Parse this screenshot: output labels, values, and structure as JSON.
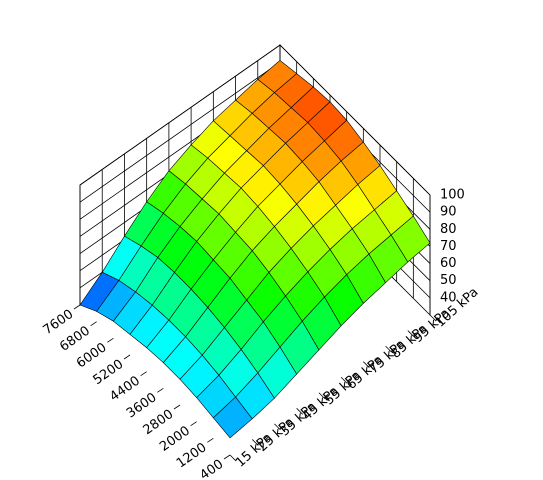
{
  "chart_data": {
    "type": "surface",
    "x": [
      15,
      25,
      35,
      45,
      55,
      65,
      75,
      85,
      95,
      105
    ],
    "y": [
      400,
      1200,
      2000,
      2800,
      3600,
      4400,
      5200,
      6000,
      6800,
      7600
    ],
    "z": [
      [
        40,
        42,
        45,
        50,
        55,
        60,
        64,
        67,
        70,
        72
      ],
      [
        42,
        45,
        50,
        56,
        62,
        67,
        71,
        74,
        76,
        78
      ],
      [
        44,
        48,
        54,
        61,
        67,
        72,
        76,
        79,
        81,
        83
      ],
      [
        45,
        50,
        57,
        64,
        71,
        76,
        80,
        83,
        86,
        88
      ],
      [
        45,
        51,
        59,
        67,
        74,
        79,
        83,
        87,
        90,
        92
      ],
      [
        44,
        51,
        60,
        68,
        75,
        81,
        85,
        89,
        92,
        95
      ],
      [
        42,
        50,
        60,
        69,
        76,
        82,
        86,
        90,
        93,
        96
      ],
      [
        40,
        48,
        59,
        68,
        75,
        81,
        85,
        89,
        92,
        95
      ],
      [
        36,
        45,
        56,
        66,
        74,
        80,
        84,
        88,
        91,
        93
      ],
      [
        30,
        40,
        52,
        63,
        72,
        78,
        83,
        86,
        89,
        91
      ]
    ],
    "xlim": [
      15,
      105
    ],
    "ylim": [
      400,
      7600
    ],
    "zlim": [
      30,
      100
    ],
    "xticks": [
      {
        "value": 15,
        "label": "15 kPa"
      },
      {
        "value": 25,
        "label": "25 kPa"
      },
      {
        "value": 35,
        "label": "35 kPa"
      },
      {
        "value": 45,
        "label": "45 kPa"
      },
      {
        "value": 55,
        "label": "55 kPa"
      },
      {
        "value": 65,
        "label": "65 kPa"
      },
      {
        "value": 75,
        "label": "75 kPa"
      },
      {
        "value": 85,
        "label": "85 kPa"
      },
      {
        "value": 95,
        "label": "95 kPa"
      },
      {
        "value": 105,
        "label": "105 kPa"
      }
    ],
    "yticks": [
      400,
      1200,
      2000,
      2800,
      3600,
      4400,
      5200,
      6000,
      6800,
      7600
    ],
    "zticks": [
      40,
      50,
      60,
      70,
      80,
      90,
      100
    ],
    "colormap": "jet"
  }
}
